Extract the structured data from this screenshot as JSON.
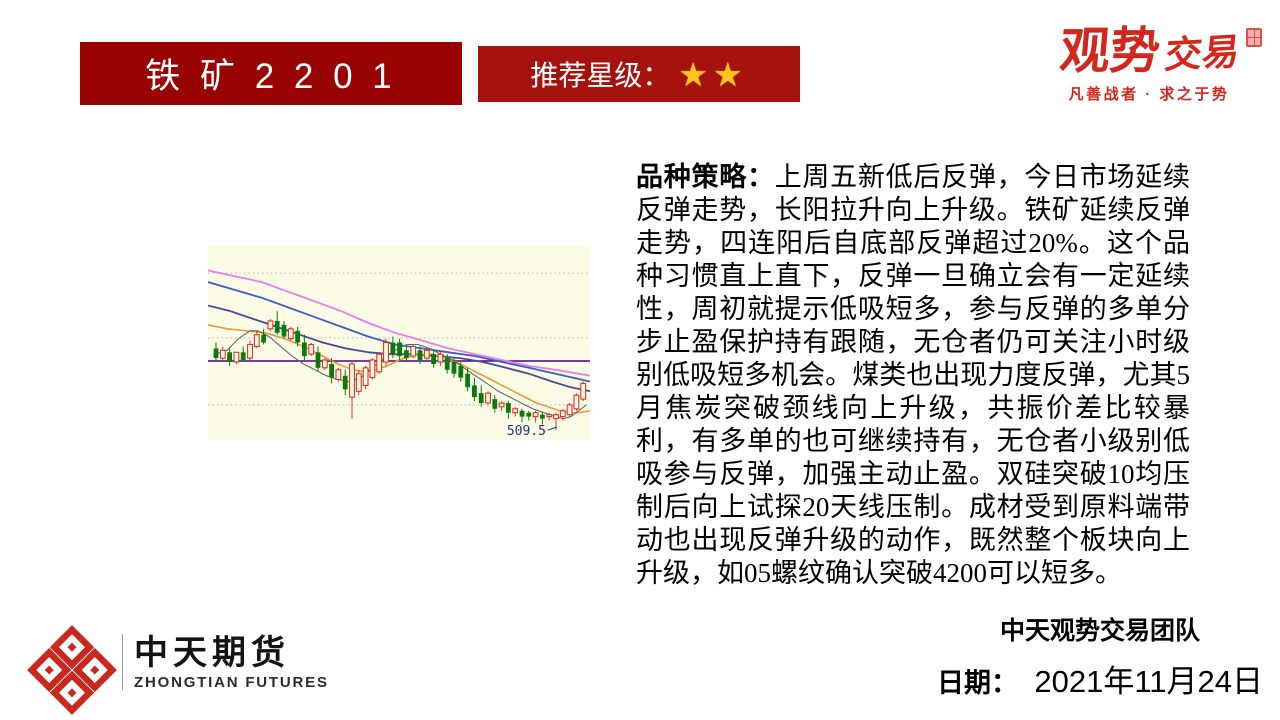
{
  "header": {
    "contract": "铁 矿 2 2 0 1",
    "contract_bg": "#990302",
    "rating_label": "推荐星级：",
    "rating_stars": "★★",
    "rating_bg": "#a6130f",
    "star_color": "#ffc41e"
  },
  "brand": {
    "primary": "观势",
    "secondary": "交易",
    "tagline": "凡善战者 · 求之于势",
    "color": "#d3261c"
  },
  "strategy": {
    "lead": "品种策略：",
    "body": "上周五新低后反弹，今日市场延续反弹走势，长阳拉升向上升级。铁矿延续反弹走势，四连阳后自底部反弹超过20%。这个品种习惯直上直下，反弹一旦确立会有一定延续性，周初就提示低吸短多，参与反弹的多单分步止盈保护持有跟随，无仓者仍可关注小时级别低吸短多机会。煤类也出现力度反弹，尤其5月焦炭突破颈线向上升级，共振价差比较暴利，有多单的也可继续持有，无仓者小级别低吸参与反弹，加强主动止盈。双硅突破10均压制后向上试探20天线压制。成材受到原料端带动也出现反弹升级的动作，既然整个板块向上升级，如05螺纹确认突破4200可以短多。"
  },
  "chart_data": {
    "type": "candlestick",
    "background": "#fcfce6",
    "grid_color": "#b5b5b5",
    "gridlines_y_pct": [
      14.4,
      47.7,
      82
    ],
    "hline": {
      "y_pct": 59.5,
      "color": "#4b0082"
    },
    "up_color": "#dd3225",
    "down_color": "#0a7a0a",
    "x0": 8,
    "dx": 6.8,
    "series": [
      {
        "name": "ma-pink",
        "color": "#ee7ce8",
        "width": 1.8,
        "points_pct": [
          [
            0,
            13
          ],
          [
            7,
            16
          ],
          [
            14,
            19
          ],
          [
            21,
            24
          ],
          [
            28,
            29
          ],
          [
            35,
            34
          ],
          [
            42,
            40
          ],
          [
            49,
            45
          ],
          [
            56,
            49
          ],
          [
            63,
            53
          ],
          [
            70,
            56
          ],
          [
            77,
            59
          ],
          [
            84,
            62
          ],
          [
            91,
            64
          ],
          [
            100,
            67
          ]
        ]
      },
      {
        "name": "ma-blue",
        "color": "#3b5dc4",
        "width": 1.8,
        "points_pct": [
          [
            0,
            19
          ],
          [
            7,
            23
          ],
          [
            14,
            27
          ],
          [
            21,
            32
          ],
          [
            28,
            37
          ],
          [
            35,
            42
          ],
          [
            42,
            47
          ],
          [
            49,
            51
          ],
          [
            56,
            53
          ],
          [
            63,
            55
          ],
          [
            70,
            57
          ],
          [
            77,
            60
          ],
          [
            84,
            63
          ],
          [
            91,
            66
          ],
          [
            100,
            70
          ]
        ]
      },
      {
        "name": "ma-slate",
        "color": "#4d4796",
        "width": 1.8,
        "points_pct": [
          [
            0,
            31
          ],
          [
            6,
            34
          ],
          [
            12,
            38
          ],
          [
            18,
            42
          ],
          [
            24,
            46
          ],
          [
            30,
            50
          ],
          [
            36,
            53
          ],
          [
            42,
            55
          ],
          [
            48,
            56
          ],
          [
            54,
            56
          ],
          [
            60,
            57
          ],
          [
            66,
            58
          ],
          [
            72,
            60
          ],
          [
            78,
            63
          ],
          [
            84,
            66
          ],
          [
            90,
            70
          ],
          [
            95,
            73
          ],
          [
            100,
            75
          ]
        ]
      },
      {
        "name": "ma-orange",
        "color": "#ed9a33",
        "width": 1.6,
        "points_pct": [
          [
            0,
            41
          ],
          [
            5,
            43
          ],
          [
            10,
            44
          ],
          [
            15,
            45
          ],
          [
            20,
            48
          ],
          [
            25,
            52
          ],
          [
            30,
            57
          ],
          [
            34,
            61
          ],
          [
            38,
            64
          ],
          [
            41,
            65
          ],
          [
            44,
            64
          ],
          [
            47,
            62
          ],
          [
            50,
            59
          ],
          [
            53,
            57
          ],
          [
            56,
            56
          ],
          [
            59,
            56
          ],
          [
            62,
            58
          ],
          [
            65,
            60
          ],
          [
            68,
            63
          ],
          [
            71,
            66
          ],
          [
            74,
            69
          ],
          [
            77,
            72
          ],
          [
            80,
            75
          ],
          [
            83,
            78
          ],
          [
            86,
            81
          ],
          [
            89,
            83
          ],
          [
            92,
            85
          ],
          [
            95,
            86
          ],
          [
            97,
            86
          ],
          [
            100,
            85
          ]
        ]
      },
      {
        "name": "ma-fast",
        "color": "#5e6b74",
        "width": 1.1,
        "points_pct": [
          [
            2,
            56
          ],
          [
            5,
            54
          ],
          [
            8,
            48
          ],
          [
            11,
            44
          ],
          [
            13,
            44
          ],
          [
            16,
            47
          ],
          [
            19,
            52
          ],
          [
            22,
            57
          ],
          [
            25,
            61
          ],
          [
            28,
            64
          ],
          [
            31,
            67
          ],
          [
            34,
            69
          ],
          [
            37,
            70
          ],
          [
            40,
            68
          ],
          [
            43,
            63
          ],
          [
            46,
            58
          ],
          [
            49,
            54
          ],
          [
            52,
            51
          ],
          [
            55,
            51
          ],
          [
            58,
            53
          ],
          [
            61,
            56
          ],
          [
            64,
            59
          ],
          [
            67,
            63
          ],
          [
            70,
            67
          ],
          [
            73,
            71
          ],
          [
            76,
            75
          ],
          [
            79,
            78
          ],
          [
            82,
            81
          ],
          [
            85,
            84
          ],
          [
            88,
            86
          ],
          [
            91,
            88
          ],
          [
            93,
            89
          ],
          [
            95,
            88
          ],
          [
            97,
            85
          ],
          [
            99,
            82
          ]
        ]
      }
    ],
    "candles": [
      [
        50,
        53,
        58,
        60,
        "g"
      ],
      [
        52,
        58,
        54,
        59,
        "r"
      ],
      [
        53,
        55,
        60,
        62,
        "g"
      ],
      [
        55,
        60,
        55,
        61,
        "r"
      ],
      [
        52,
        55,
        59,
        60,
        "g"
      ],
      [
        49,
        58,
        51,
        59,
        "r"
      ],
      [
        44,
        52,
        46,
        53,
        "r"
      ],
      [
        43,
        46,
        50,
        51,
        "g"
      ],
      [
        38,
        43,
        39,
        44,
        "r"
      ],
      [
        34,
        39,
        45,
        46,
        "g"
      ],
      [
        39,
        41,
        47,
        48,
        "g"
      ],
      [
        42,
        48,
        43,
        49,
        "r"
      ],
      [
        42,
        44,
        50,
        52,
        "g"
      ],
      [
        46,
        50,
        57,
        59,
        "g"
      ],
      [
        50,
        56,
        51,
        57,
        "r"
      ],
      [
        52,
        55,
        63,
        65,
        "g"
      ],
      [
        58,
        63,
        59,
        64,
        "r"
      ],
      [
        58,
        61,
        68,
        71,
        "g"
      ],
      [
        63,
        69,
        64,
        70,
        "r"
      ],
      [
        64,
        67,
        74,
        77,
        "g"
      ],
      [
        59,
        78,
        61,
        89,
        "r"
      ],
      [
        64,
        75,
        66,
        77,
        "r"
      ],
      [
        62,
        72,
        63,
        74,
        "r"
      ],
      [
        58,
        68,
        59,
        69,
        "r"
      ],
      [
        55,
        65,
        56,
        66,
        "r"
      ],
      [
        48,
        60,
        50,
        62,
        "r"
      ],
      [
        47,
        50,
        56,
        58,
        "g"
      ],
      [
        48,
        50,
        57,
        59,
        "g"
      ],
      [
        52,
        54,
        58,
        60,
        "g"
      ],
      [
        51,
        57,
        52,
        58,
        "r"
      ],
      [
        52,
        54,
        59,
        61,
        "g"
      ],
      [
        53,
        58,
        54,
        59,
        "r"
      ],
      [
        54,
        56,
        61,
        63,
        "g"
      ],
      [
        55,
        60,
        56,
        62,
        "r"
      ],
      [
        56,
        58,
        64,
        66,
        "g"
      ],
      [
        58,
        60,
        66,
        68,
        "g"
      ],
      [
        60,
        62,
        68,
        70,
        "g"
      ],
      [
        63,
        66,
        73,
        75,
        "g"
      ],
      [
        68,
        72,
        78,
        80,
        "g"
      ],
      [
        72,
        76,
        81,
        83,
        "g"
      ],
      [
        75,
        81,
        76,
        82,
        "r"
      ],
      [
        77,
        79,
        84,
        86,
        "g"
      ],
      [
        80,
        83,
        81,
        85,
        "r"
      ],
      [
        80,
        81,
        86,
        89,
        "g"
      ],
      [
        83,
        86,
        84,
        88,
        "r"
      ],
      [
        84,
        85,
        88,
        91,
        "g"
      ],
      [
        85,
        86,
        88,
        90,
        "g"
      ],
      [
        85,
        88,
        86,
        91,
        "r"
      ],
      [
        86,
        87,
        89,
        92,
        "g"
      ],
      [
        86,
        88,
        87,
        90,
        "r"
      ],
      [
        86,
        89,
        87,
        95,
        "r"
      ],
      [
        84,
        88,
        85,
        90,
        "r"
      ],
      [
        81,
        87,
        82,
        88,
        "r"
      ],
      [
        76,
        84,
        77,
        85,
        "r"
      ],
      [
        70,
        79,
        71,
        80,
        "r"
      ]
    ],
    "annotation": {
      "text": "509.5",
      "x": 338,
      "y": 190,
      "color": "#1d2f93"
    }
  },
  "footer": {
    "company_cn": "中天期货",
    "company_en": "ZHONGTIAN FUTURES",
    "logo_color": "#c8281e",
    "team": "中天观势交易团队",
    "date_label": "日期：",
    "date_value": "2021年11月24日"
  }
}
